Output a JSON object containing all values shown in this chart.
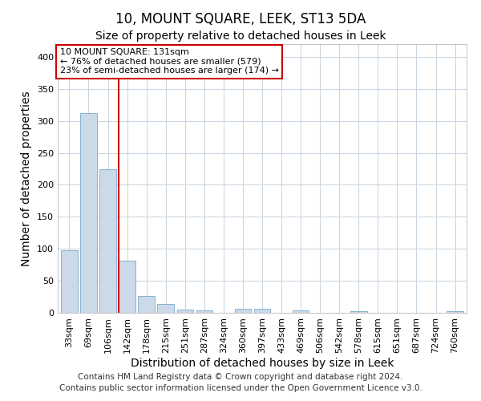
{
  "title": "10, MOUNT SQUARE, LEEK, ST13 5DA",
  "subtitle": "Size of property relative to detached houses in Leek",
  "xlabel": "Distribution of detached houses by size in Leek",
  "ylabel": "Number of detached properties",
  "categories": [
    "33sqm",
    "69sqm",
    "106sqm",
    "142sqm",
    "178sqm",
    "215sqm",
    "251sqm",
    "287sqm",
    "324sqm",
    "360sqm",
    "397sqm",
    "433sqm",
    "469sqm",
    "506sqm",
    "542sqm",
    "578sqm",
    "615sqm",
    "651sqm",
    "687sqm",
    "724sqm",
    "760sqm"
  ],
  "values": [
    98,
    312,
    224,
    82,
    26,
    14,
    5,
    4,
    0,
    6,
    6,
    0,
    4,
    0,
    0,
    3,
    0,
    0,
    0,
    0,
    3
  ],
  "bar_color": "#ccd9e8",
  "bar_edge_color": "#7aaac8",
  "vline_color": "#cc0000",
  "vline_x_index": 2.575,
  "annotation_text": "10 MOUNT SQUARE: 131sqm\n← 76% of detached houses are smaller (579)\n23% of semi-detached houses are larger (174) →",
  "annotation_box_color": "#ffffff",
  "annotation_box_edge": "#cc0000",
  "ylim": [
    0,
    420
  ],
  "yticks": [
    0,
    50,
    100,
    150,
    200,
    250,
    300,
    350,
    400
  ],
  "footer1": "Contains HM Land Registry data © Crown copyright and database right 2024.",
  "footer2": "Contains public sector information licensed under the Open Government Licence v3.0.",
  "bg_color": "#ffffff",
  "grid_color": "#c8d4e0",
  "title_fontsize": 12,
  "subtitle_fontsize": 10,
  "axis_label_fontsize": 10,
  "tick_fontsize": 8,
  "footer_fontsize": 7.5
}
